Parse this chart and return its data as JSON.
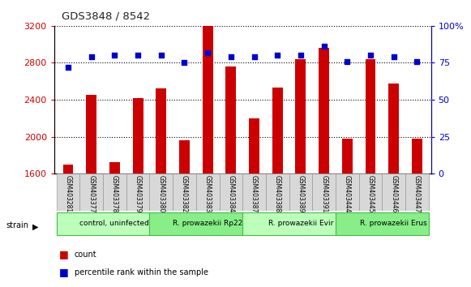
{
  "title": "GDS3848 / 8542",
  "samples": [
    "GSM403281",
    "GSM403377",
    "GSM403378",
    "GSM403379",
    "GSM403380",
    "GSM403382",
    "GSM403383",
    "GSM403384",
    "GSM403387",
    "GSM403388",
    "GSM403389",
    "GSM403391",
    "GSM403444",
    "GSM403445",
    "GSM403446",
    "GSM403447"
  ],
  "counts": [
    1700,
    2450,
    1720,
    2420,
    2520,
    1960,
    3200,
    2760,
    2200,
    2530,
    2840,
    2960,
    1980,
    2840,
    2580,
    1980
  ],
  "percentiles": [
    72,
    79,
    80,
    80,
    80,
    75,
    82,
    79,
    79,
    80,
    80,
    86,
    76,
    80,
    79,
    76
  ],
  "groups": [
    {
      "label": "control, uninfected",
      "start": 0,
      "end": 4,
      "color": "#bbffbb"
    },
    {
      "label": "R. prowazekii Rp22",
      "start": 4,
      "end": 8,
      "color": "#88ee88"
    },
    {
      "label": "R. prowazekii Evir",
      "start": 8,
      "end": 12,
      "color": "#bbffbb"
    },
    {
      "label": "R. prowazekii Erus",
      "start": 12,
      "end": 16,
      "color": "#88ee88"
    }
  ],
  "ylim_left": [
    1600,
    3200
  ],
  "ylim_right": [
    0,
    100
  ],
  "yticks_left": [
    1600,
    2000,
    2400,
    2800,
    3200
  ],
  "yticks_right": [
    0,
    25,
    50,
    75,
    100
  ],
  "bar_color": "#cc0000",
  "dot_color": "#0000cc",
  "left_tick_color": "#cc0000",
  "right_tick_color": "#0000cc",
  "legend_count_color": "#cc0000",
  "legend_pct_color": "#0000cc",
  "bar_width": 0.45
}
